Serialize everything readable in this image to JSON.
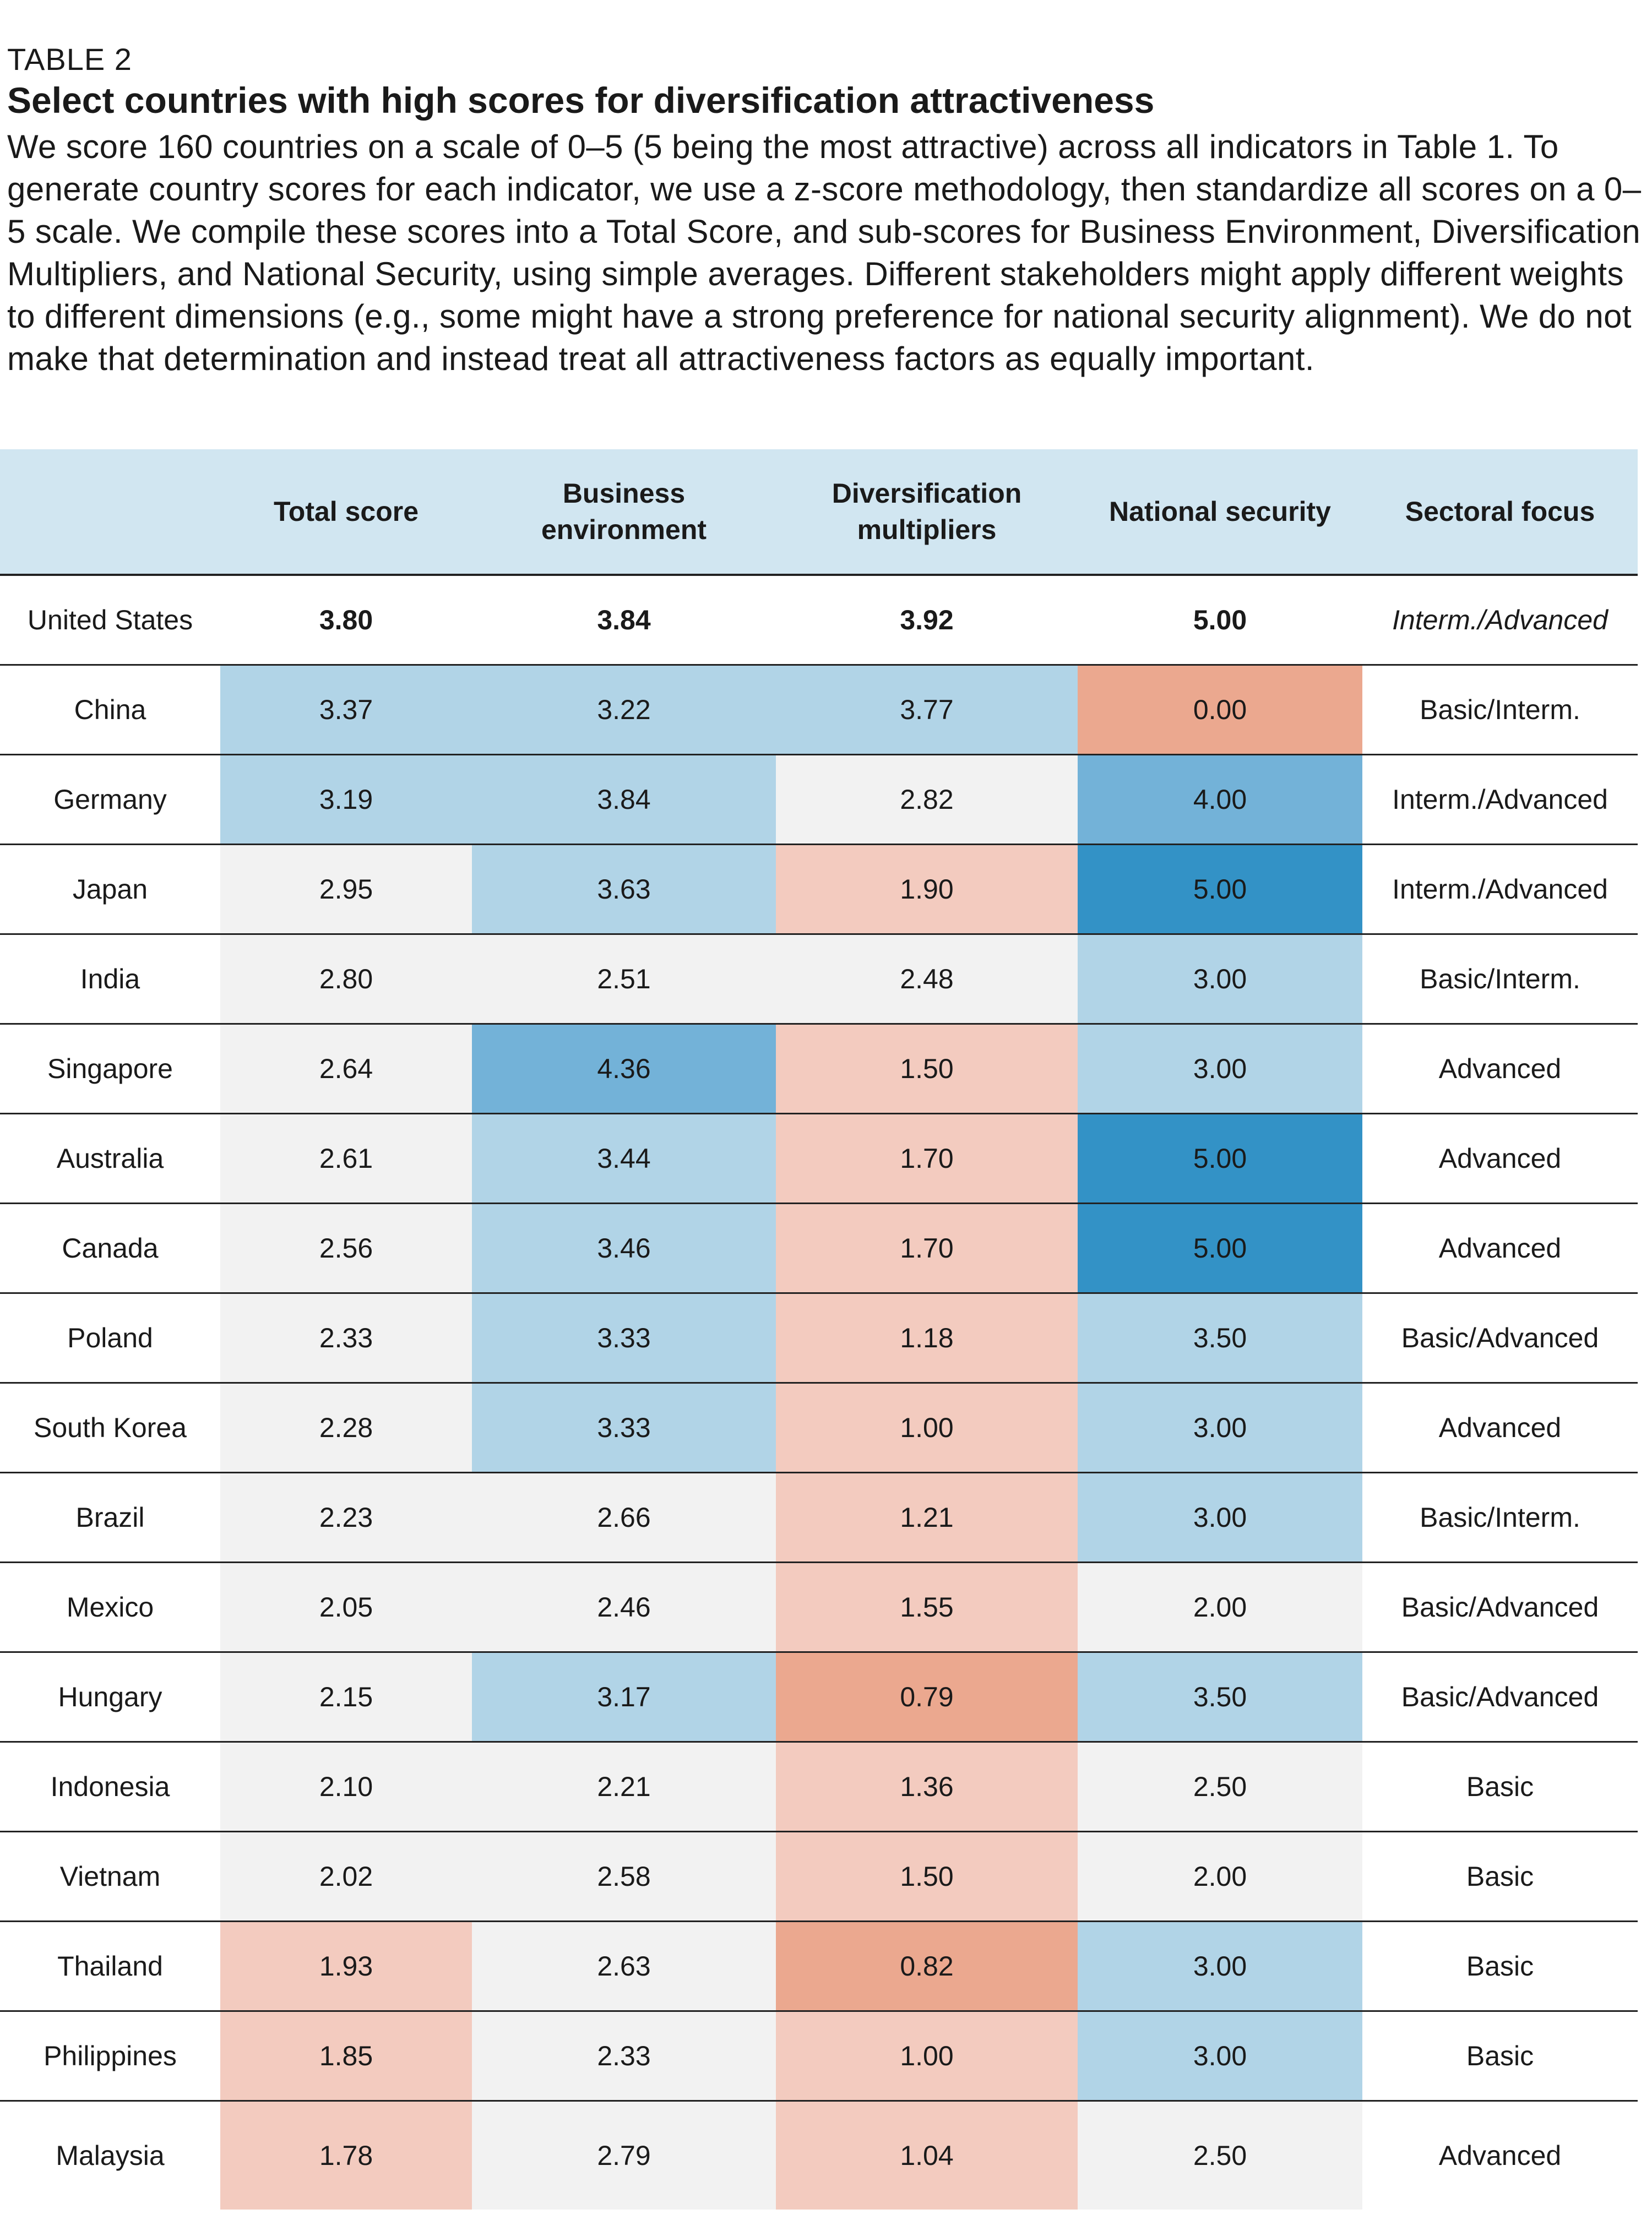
{
  "table_label": "TABLE 2",
  "title": "Select countries with high scores for diversification attractiveness",
  "description": "We score 160 countries on a scale of 0–5 (5 being the most attractive) across all indicators in Table 1. To generate country scores for each indicator, we use a z-score methodology, then standardize all scores on a 0–5 scale. We compile these scores into a Total Score, and sub-scores for Business Environment, Diversification Multipliers, and National Security, using simple averages. Different stakeholders might apply different weights to different dimensions (e.g., some might have a strong preference for national security alignment). We do not make that determination and instead treat all attractiveness factors as equally important.",
  "colors": {
    "header_bg": "#d1e6f1",
    "neutral": "#f2f2f2",
    "blue_light": "#b1d4e7",
    "blue_mid": "#73b2d8",
    "blue_dark": "#3392c6",
    "salmon_light": "#f3cbbf",
    "salmon_dark": "#eba88f"
  },
  "headers": {
    "country": "",
    "total": "Total score",
    "business_line1": "Business",
    "business_line2": "environment",
    "divers_line1": "Diversification",
    "divers_line2": "multipliers",
    "security": "National security",
    "sector": "Sectoral focus"
  },
  "rows": [
    {
      "country": "United States",
      "total": "3.80",
      "business": "3.84",
      "divers": "3.92",
      "security": "5.00",
      "sector": "Interm./Advanced"
    },
    {
      "country": "China",
      "total": "3.37",
      "business": "3.22",
      "divers": "3.77",
      "security": "0.00",
      "sector": "Basic/Interm."
    },
    {
      "country": "Germany",
      "total": "3.19",
      "business": "3.84",
      "divers": "2.82",
      "security": "4.00",
      "sector": "Interm./Advanced"
    },
    {
      "country": "Japan",
      "total": "2.95",
      "business": "3.63",
      "divers": "1.90",
      "security": "5.00",
      "sector": "Interm./Advanced"
    },
    {
      "country": "India",
      "total": "2.80",
      "business": "2.51",
      "divers": "2.48",
      "security": "3.00",
      "sector": "Basic/Interm."
    },
    {
      "country": "Singapore",
      "total": "2.64",
      "business": "4.36",
      "divers": "1.50",
      "security": "3.00",
      "sector": "Advanced"
    },
    {
      "country": "Australia",
      "total": "2.61",
      "business": "3.44",
      "divers": "1.70",
      "security": "5.00",
      "sector": "Advanced"
    },
    {
      "country": "Canada",
      "total": "2.56",
      "business": "3.46",
      "divers": "1.70",
      "security": "5.00",
      "sector": "Advanced"
    },
    {
      "country": "Poland",
      "total": "2.33",
      "business": "3.33",
      "divers": "1.18",
      "security": "3.50",
      "sector": "Basic/Advanced"
    },
    {
      "country": "South Korea",
      "total": "2.28",
      "business": "3.33",
      "divers": "1.00",
      "security": "3.00",
      "sector": "Advanced"
    },
    {
      "country": "Brazil",
      "total": "2.23",
      "business": "2.66",
      "divers": "1.21",
      "security": "3.00",
      "sector": "Basic/Interm."
    },
    {
      "country": "Mexico",
      "total": "2.05",
      "business": "2.46",
      "divers": "1.55",
      "security": "2.00",
      "sector": "Basic/Advanced"
    },
    {
      "country": "Hungary",
      "total": "2.15",
      "business": "3.17",
      "divers": "0.79",
      "security": "3.50",
      "sector": "Basic/Advanced"
    },
    {
      "country": "Indonesia",
      "total": "2.10",
      "business": "2.21",
      "divers": "1.36",
      "security": "2.50",
      "sector": "Basic"
    },
    {
      "country": "Vietnam",
      "total": "2.02",
      "business": "2.58",
      "divers": "1.50",
      "security": "2.00",
      "sector": "Basic"
    },
    {
      "country": "Thailand",
      "total": "1.93",
      "business": "2.63",
      "divers": "0.82",
      "security": "3.00",
      "sector": "Basic"
    },
    {
      "country": "Philippines",
      "total": "1.85",
      "business": "2.33",
      "divers": "1.00",
      "security": "3.00",
      "sector": "Basic"
    },
    {
      "country": "Malaysia",
      "total": "1.78",
      "business": "2.79",
      "divers": "1.04",
      "security": "2.50",
      "sector": "Advanced"
    }
  ]
}
